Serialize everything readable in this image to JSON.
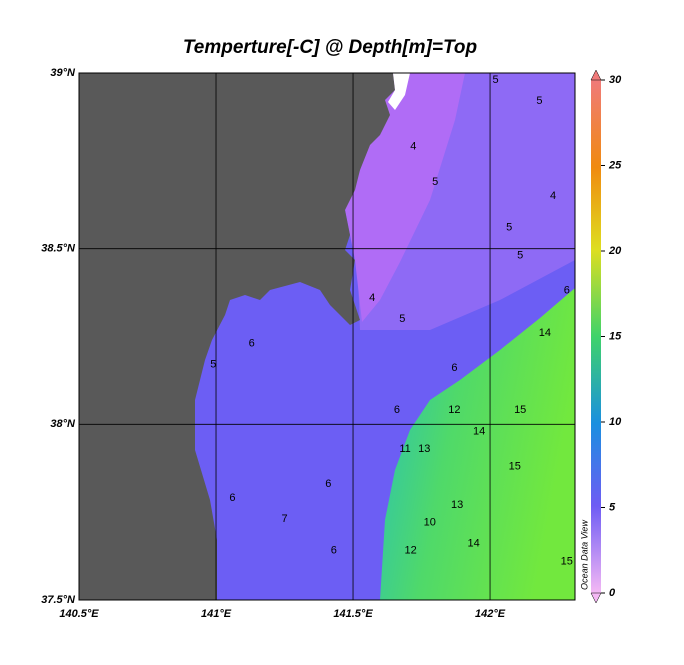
{
  "map": {
    "title": "Temperture[-C] @ Depth[m]=Top",
    "lonlim": [
      140.5,
      142.31
    ],
    "latlim": [
      37.5,
      39
    ],
    "lonticks": [
      {
        "value": 140.5,
        "label": "140.5°E"
      },
      {
        "value": 141,
        "label": "141°E"
      },
      {
        "value": 141.5,
        "label": "141.5°E"
      },
      {
        "value": 142,
        "label": "142°E"
      }
    ],
    "latticks": [
      {
        "value": 37.5,
        "label": "37.5°N"
      },
      {
        "value": 38,
        "label": "38°N"
      },
      {
        "value": 38.5,
        "label": "38.5°N"
      },
      {
        "value": 39,
        "label": "39°N"
      }
    ],
    "colorbar": {
      "lim": [
        0,
        30
      ],
      "ticks": [
        0,
        5,
        10,
        15,
        20,
        25,
        30
      ]
    },
    "watermark": "Ocean Data View",
    "contour_labels": [
      {
        "value": 5,
        "lon": 142.02,
        "lat": 38.98
      },
      {
        "value": 5,
        "lon": 142.18,
        "lat": 38.92
      },
      {
        "value": 4,
        "lon": 141.72,
        "lat": 38.79
      },
      {
        "value": 5,
        "lon": 141.8,
        "lat": 38.69
      },
      {
        "value": 4,
        "lon": 142.23,
        "lat": 38.65
      },
      {
        "value": 5,
        "lon": 142.07,
        "lat": 38.56
      },
      {
        "value": 5,
        "lon": 142.11,
        "lat": 38.48
      },
      {
        "value": 4,
        "lon": 141.57,
        "lat": 38.36
      },
      {
        "value": 5,
        "lon": 141.68,
        "lat": 38.3
      },
      {
        "value": 6,
        "lon": 142.28,
        "lat": 38.38
      },
      {
        "value": 6,
        "lon": 141.13,
        "lat": 38.23
      },
      {
        "value": 5,
        "lon": 140.99,
        "lat": 38.17
      },
      {
        "value": 6,
        "lon": 141.87,
        "lat": 38.16
      },
      {
        "value": 14,
        "lon": 142.2,
        "lat": 38.26
      },
      {
        "value": 12,
        "lon": 141.87,
        "lat": 38.04
      },
      {
        "value": 6,
        "lon": 141.66,
        "lat": 38.04
      },
      {
        "value": 15,
        "lon": 142.11,
        "lat": 38.04
      },
      {
        "value": 14,
        "lon": 141.96,
        "lat": 37.98
      },
      {
        "value": 13,
        "lon": 141.76,
        "lat": 37.93
      },
      {
        "value": 11,
        "lon": 141.69,
        "lat": 37.93
      },
      {
        "value": 15,
        "lon": 142.09,
        "lat": 37.88
      },
      {
        "value": 6,
        "lon": 141.41,
        "lat": 37.83
      },
      {
        "value": 6,
        "lon": 141.06,
        "lat": 37.79
      },
      {
        "value": 7,
        "lon": 141.25,
        "lat": 37.73
      },
      {
        "value": 10,
        "lon": 141.78,
        "lat": 37.72
      },
      {
        "value": 13,
        "lon": 141.88,
        "lat": 37.77
      },
      {
        "value": 14,
        "lon": 141.94,
        "lat": 37.66
      },
      {
        "value": 12,
        "lon": 141.71,
        "lat": 37.64
      },
      {
        "value": 6,
        "lon": 141.43,
        "lat": 37.64
      },
      {
        "value": 15,
        "lon": 142.28,
        "lat": 37.61
      }
    ]
  }
}
